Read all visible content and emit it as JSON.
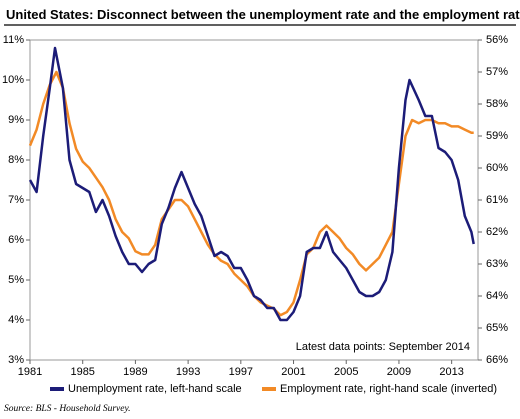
{
  "chart_data": {
    "type": "line",
    "title": "United States: Disconnect between the unemployment rate and the employment rate",
    "annotation": "Latest data points: September 2014",
    "source": "Source: BLS - Household Survey.",
    "xlim": [
      1981,
      2015
    ],
    "xticks": [
      1981,
      1985,
      1989,
      1993,
      1997,
      2001,
      2005,
      2009,
      2013
    ],
    "ylim": [
      3,
      11
    ],
    "yticks": [
      {
        "value": 3,
        "label": "3%"
      },
      {
        "value": 4,
        "label": "4%"
      },
      {
        "value": 5,
        "label": "5%"
      },
      {
        "value": 6,
        "label": "6%"
      },
      {
        "value": 7,
        "label": "7%"
      },
      {
        "value": 8,
        "label": "8%"
      },
      {
        "value": 9,
        "label": "9%"
      },
      {
        "value": 10,
        "label": "10%"
      },
      {
        "value": 11,
        "label": "11%"
      }
    ],
    "y2lim": [
      56,
      66
    ],
    "y2_inverted": true,
    "y2ticks": [
      {
        "value": 56,
        "label": "56%"
      },
      {
        "value": 57,
        "label": "57%"
      },
      {
        "value": 58,
        "label": "58%"
      },
      {
        "value": 59,
        "label": "59%"
      },
      {
        "value": 60,
        "label": "60%"
      },
      {
        "value": 61,
        "label": "61%"
      },
      {
        "value": 62,
        "label": "62%"
      },
      {
        "value": 63,
        "label": "63%"
      },
      {
        "value": 64,
        "label": "64%"
      },
      {
        "value": 65,
        "label": "65%"
      },
      {
        "value": 66,
        "label": "66%"
      }
    ],
    "legend": "bottom",
    "series": [
      {
        "name": "Unemployment rate, left-hand scale",
        "color": "#1c1c78",
        "axis": "y",
        "x": [
          1981,
          1981.5,
          1982,
          1982.5,
          1982.9,
          1983.5,
          1984,
          1984.5,
          1985,
          1985.5,
          1986,
          1986.5,
          1987,
          1987.5,
          1988,
          1988.5,
          1989,
          1989.5,
          1990,
          1990.5,
          1991,
          1991.5,
          1992,
          1992.5,
          1993,
          1993.5,
          1994,
          1994.5,
          1995,
          1995.5,
          1996,
          1996.5,
          1997,
          1997.5,
          1998,
          1998.5,
          1999,
          1999.5,
          2000,
          2000.5,
          2001,
          2001.5,
          2002,
          2002.5,
          2003,
          2003.5,
          2004,
          2004.5,
          2005,
          2005.5,
          2006,
          2006.5,
          2007,
          2007.5,
          2008,
          2008.5,
          2009,
          2009.5,
          2009.8,
          2010.5,
          2011,
          2011.5,
          2012,
          2012.5,
          2013,
          2013.5,
          2014,
          2014.5,
          2014.67
        ],
        "values": [
          7.5,
          7.2,
          8.6,
          9.8,
          10.8,
          9.8,
          8.0,
          7.4,
          7.3,
          7.2,
          6.7,
          7.0,
          6.6,
          6.1,
          5.7,
          5.4,
          5.4,
          5.2,
          5.4,
          5.5,
          6.4,
          6.8,
          7.3,
          7.7,
          7.3,
          6.9,
          6.6,
          6.1,
          5.6,
          5.7,
          5.6,
          5.3,
          5.3,
          5.0,
          4.6,
          4.5,
          4.3,
          4.3,
          4.0,
          4.0,
          4.2,
          4.6,
          5.7,
          5.8,
          5.8,
          6.2,
          5.7,
          5.5,
          5.3,
          5.0,
          4.7,
          4.6,
          4.6,
          4.7,
          5.0,
          5.7,
          7.8,
          9.5,
          10.0,
          9.5,
          9.1,
          9.1,
          8.3,
          8.2,
          8.0,
          7.5,
          6.6,
          6.2,
          5.9
        ]
      },
      {
        "name": "Employment rate, right-hand scale (inverted)",
        "color": "#f28a26",
        "axis": "y2",
        "x": [
          1981,
          1981.5,
          1982,
          1982.5,
          1983,
          1983.5,
          1984,
          1984.5,
          1985,
          1985.5,
          1986,
          1986.5,
          1987,
          1987.5,
          1988,
          1988.5,
          1989,
          1989.5,
          1990,
          1990.5,
          1991,
          1991.5,
          1992,
          1992.5,
          1993,
          1993.5,
          1994,
          1994.5,
          1995,
          1995.5,
          1996,
          1996.5,
          1997,
          1997.5,
          1998,
          1998.5,
          1999,
          1999.5,
          2000,
          2000.5,
          2001,
          2001.5,
          2002,
          2002.5,
          2003,
          2003.5,
          2004,
          2004.5,
          2005,
          2005.5,
          2006,
          2006.5,
          2007,
          2007.5,
          2008,
          2008.5,
          2009,
          2009.5,
          2010,
          2010.5,
          2011,
          2011.5,
          2012,
          2012.5,
          2013,
          2013.5,
          2014,
          2014.5,
          2014.67
        ],
        "values": [
          59.3,
          58.8,
          58.0,
          57.4,
          57.0,
          57.5,
          58.6,
          59.4,
          59.8,
          60.0,
          60.3,
          60.6,
          61.0,
          61.6,
          62.0,
          62.2,
          62.6,
          62.7,
          62.7,
          62.4,
          61.6,
          61.3,
          61.0,
          61.0,
          61.2,
          61.6,
          62.0,
          62.4,
          62.7,
          62.9,
          63.0,
          63.3,
          63.5,
          63.7,
          64.0,
          64.2,
          64.3,
          64.4,
          64.6,
          64.5,
          64.2,
          63.5,
          62.7,
          62.5,
          62.0,
          61.8,
          62.0,
          62.2,
          62.5,
          62.7,
          63.0,
          63.2,
          63.0,
          62.8,
          62.4,
          62.0,
          60.5,
          59.0,
          58.5,
          58.6,
          58.5,
          58.5,
          58.6,
          58.6,
          58.7,
          58.7,
          58.8,
          58.9,
          58.9
        ]
      }
    ]
  }
}
